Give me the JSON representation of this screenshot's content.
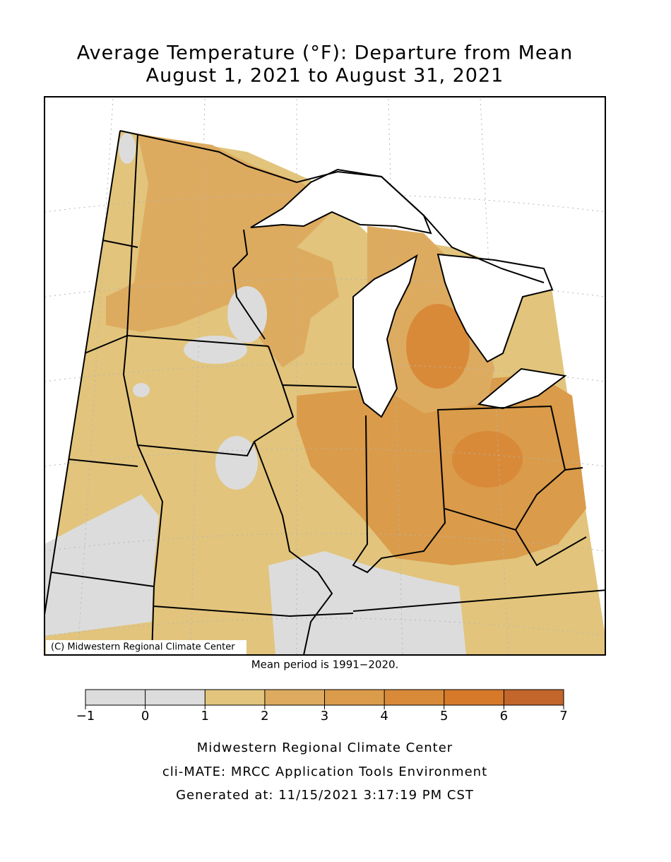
{
  "title": [
    "Average Temperature (°F): Departure from Mean",
    "August 1, 2021 to August 31, 2021"
  ],
  "credit": "(C) Midwestern Regional Climate Center",
  "note": "Mean period is 1991−2020.",
  "legend": {
    "ticks": [
      {
        "value": -1,
        "label": "−1"
      },
      0,
      1,
      2,
      3,
      4,
      5,
      6,
      7
    ],
    "colors": [
      "#dcdcdc",
      "#dcdcdc",
      "#e2c47c",
      "#ddab5f",
      "#da9b4a",
      "#d98a38",
      "#d67a2a",
      "#c2662c"
    ]
  },
  "footer": [
    "Midwestern Regional Climate Center",
    "cli-MATE: MRCC Application Tools Environment",
    "Generated at: 11/15/2021 3:17:19 PM CST"
  ]
}
